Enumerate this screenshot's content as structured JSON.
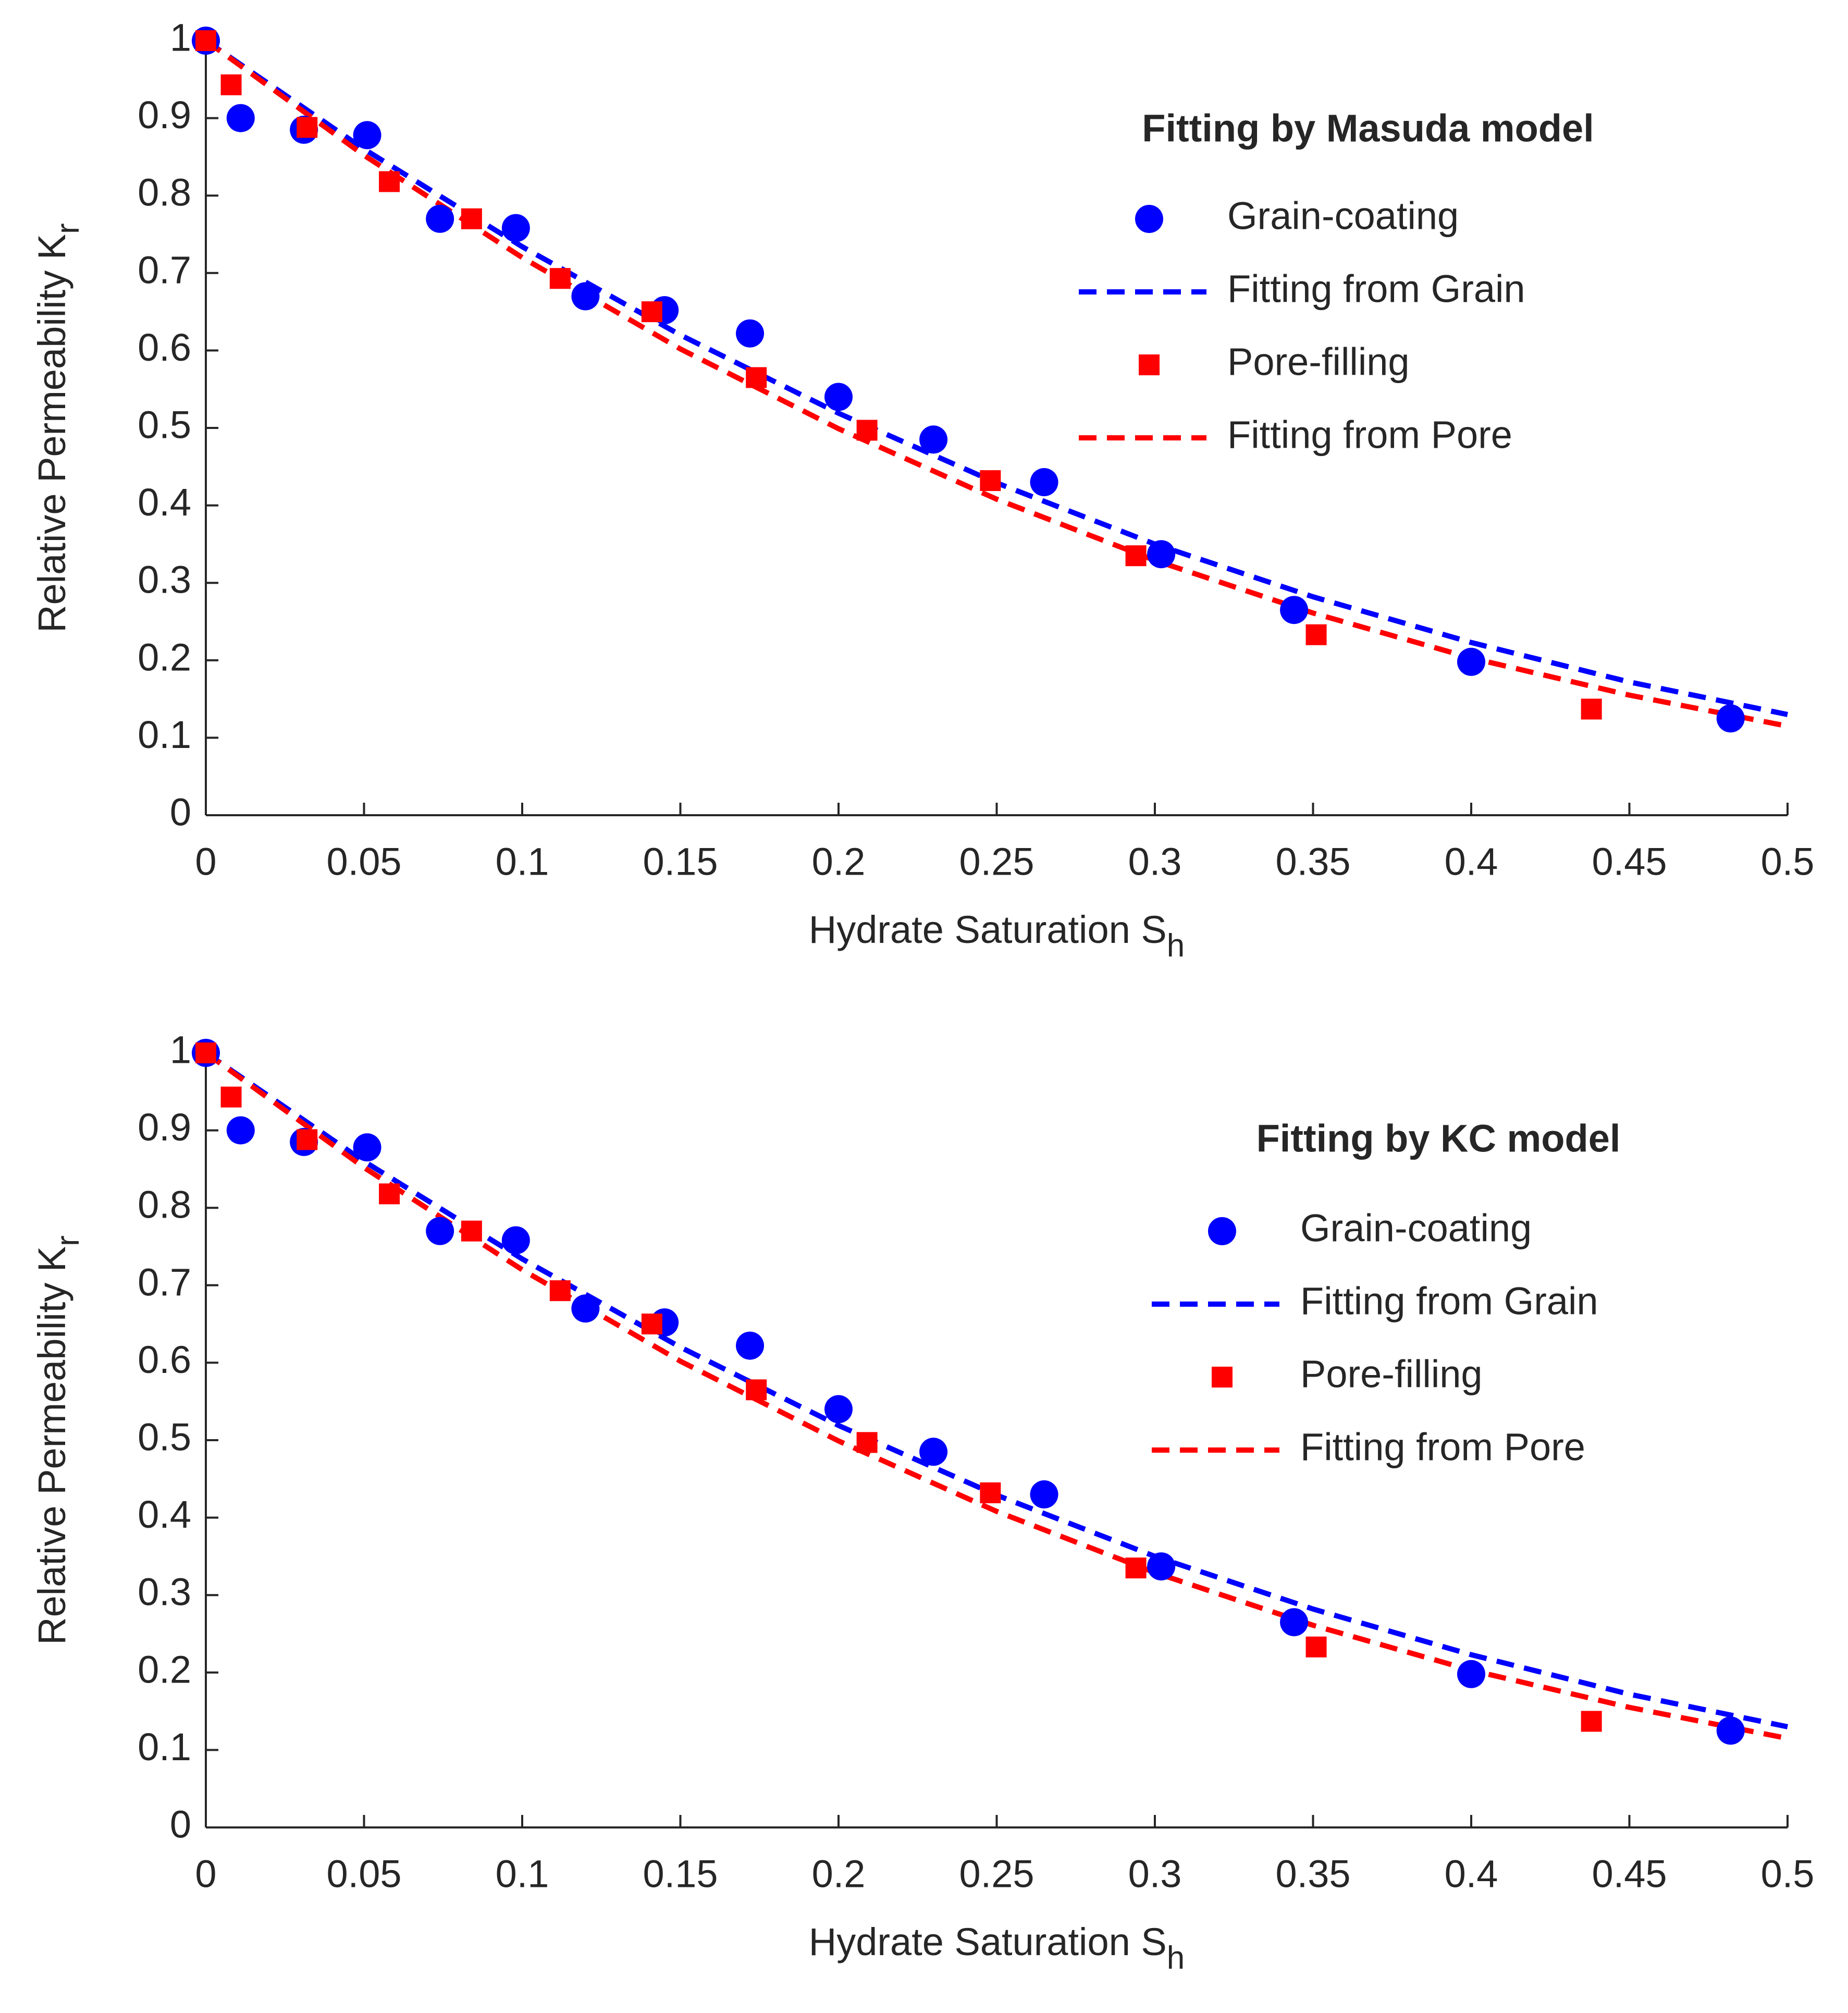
{
  "chart_data": [
    {
      "type": "scatter",
      "title": "Fitting by Masuda model",
      "x_label": "Hydrate Saturation S",
      "x_label_sub": "h",
      "y_label": "Relative Permeability K",
      "y_label_sub": "r",
      "xlim": [
        0,
        0.5
      ],
      "xticks": [
        0,
        0.05,
        0.1,
        0.15,
        0.2,
        0.25,
        0.3,
        0.35,
        0.4,
        0.45,
        0.5
      ],
      "ylim": [
        0,
        1
      ],
      "yticks": [
        0,
        0.1,
        0.2,
        0.3,
        0.4,
        0.5,
        0.6,
        0.7,
        0.8,
        0.9,
        1
      ],
      "series": [
        {
          "name": "Grain-coating",
          "color": "#0000ff",
          "marker": "circle",
          "x": [
            0,
            0.011,
            0.031,
            0.051,
            0.074,
            0.098,
            0.12,
            0.145,
            0.172,
            0.2,
            0.23,
            0.265,
            0.302,
            0.344,
            0.4,
            0.482
          ],
          "values": [
            1.0,
            0.9,
            0.885,
            0.878,
            0.77,
            0.758,
            0.67,
            0.652,
            0.622,
            0.54,
            0.485,
            0.43,
            0.337,
            0.265,
            0.198,
            0.125
          ]
        },
        {
          "name": "Fitting from Grain",
          "color": "#0000ff",
          "line": "dashed",
          "x": [
            0,
            0.05,
            0.1,
            0.15,
            0.2,
            0.25,
            0.3,
            0.35,
            0.4,
            0.45,
            0.5
          ],
          "values": [
            1.0,
            0.86,
            0.734,
            0.62,
            0.519,
            0.429,
            0.35,
            0.282,
            0.223,
            0.172,
            0.13
          ]
        },
        {
          "name": "Pore-filling",
          "color": "#ff0000",
          "marker": "square",
          "x": [
            0,
            0.008,
            0.032,
            0.058,
            0.084,
            0.112,
            0.141,
            0.174,
            0.209,
            0.248,
            0.294,
            0.351,
            0.438
          ],
          "values": [
            1.0,
            0.943,
            0.888,
            0.818,
            0.77,
            0.693,
            0.65,
            0.565,
            0.497,
            0.432,
            0.335,
            0.233,
            0.137
          ]
        },
        {
          "name": "Fitting from Pore",
          "color": "#ff0000",
          "line": "dashed",
          "x": [
            0,
            0.05,
            0.1,
            0.15,
            0.2,
            0.25,
            0.3,
            0.35,
            0.4,
            0.45,
            0.5
          ],
          "values": [
            1.0,
            0.852,
            0.72,
            0.602,
            0.499,
            0.408,
            0.329,
            0.261,
            0.203,
            0.155,
            0.115
          ]
        }
      ]
    },
    {
      "type": "scatter",
      "title": "Fitting by KC model",
      "x_label": "Hydrate Saturation S",
      "x_label_sub": "h",
      "y_label": "Relative Permeability K",
      "y_label_sub": "r",
      "xlim": [
        0,
        0.5
      ],
      "xticks": [
        0,
        0.05,
        0.1,
        0.15,
        0.2,
        0.25,
        0.3,
        0.35,
        0.4,
        0.45,
        0.5
      ],
      "ylim": [
        0,
        1
      ],
      "yticks": [
        0,
        0.1,
        0.2,
        0.3,
        0.4,
        0.5,
        0.6,
        0.7,
        0.8,
        0.9,
        1
      ],
      "series": [
        {
          "name": "Grain-coating",
          "color": "#0000ff",
          "marker": "circle",
          "x": [
            0,
            0.011,
            0.031,
            0.051,
            0.074,
            0.098,
            0.12,
            0.145,
            0.172,
            0.2,
            0.23,
            0.265,
            0.302,
            0.344,
            0.4,
            0.482
          ],
          "values": [
            1.0,
            0.9,
            0.885,
            0.878,
            0.77,
            0.758,
            0.67,
            0.652,
            0.622,
            0.54,
            0.485,
            0.43,
            0.337,
            0.265,
            0.198,
            0.125
          ]
        },
        {
          "name": "Fitting from Grain",
          "color": "#0000ff",
          "line": "dashed",
          "x": [
            0,
            0.05,
            0.1,
            0.15,
            0.2,
            0.25,
            0.3,
            0.35,
            0.4,
            0.45,
            0.5
          ],
          "values": [
            1.0,
            0.86,
            0.734,
            0.62,
            0.519,
            0.429,
            0.35,
            0.282,
            0.223,
            0.172,
            0.13
          ]
        },
        {
          "name": "Pore-filling",
          "color": "#ff0000",
          "marker": "square",
          "x": [
            0,
            0.008,
            0.032,
            0.058,
            0.084,
            0.112,
            0.141,
            0.174,
            0.209,
            0.248,
            0.294,
            0.351,
            0.438
          ],
          "values": [
            1.0,
            0.943,
            0.888,
            0.818,
            0.77,
            0.693,
            0.65,
            0.565,
            0.497,
            0.432,
            0.335,
            0.233,
            0.137
          ]
        },
        {
          "name": "Fitting from Pore",
          "color": "#ff0000",
          "line": "dashed",
          "x": [
            0,
            0.05,
            0.1,
            0.15,
            0.2,
            0.25,
            0.3,
            0.35,
            0.4,
            0.45,
            0.5
          ],
          "values": [
            1.0,
            0.852,
            0.72,
            0.602,
            0.499,
            0.408,
            0.329,
            0.261,
            0.203,
            0.155,
            0.115
          ]
        }
      ]
    }
  ]
}
